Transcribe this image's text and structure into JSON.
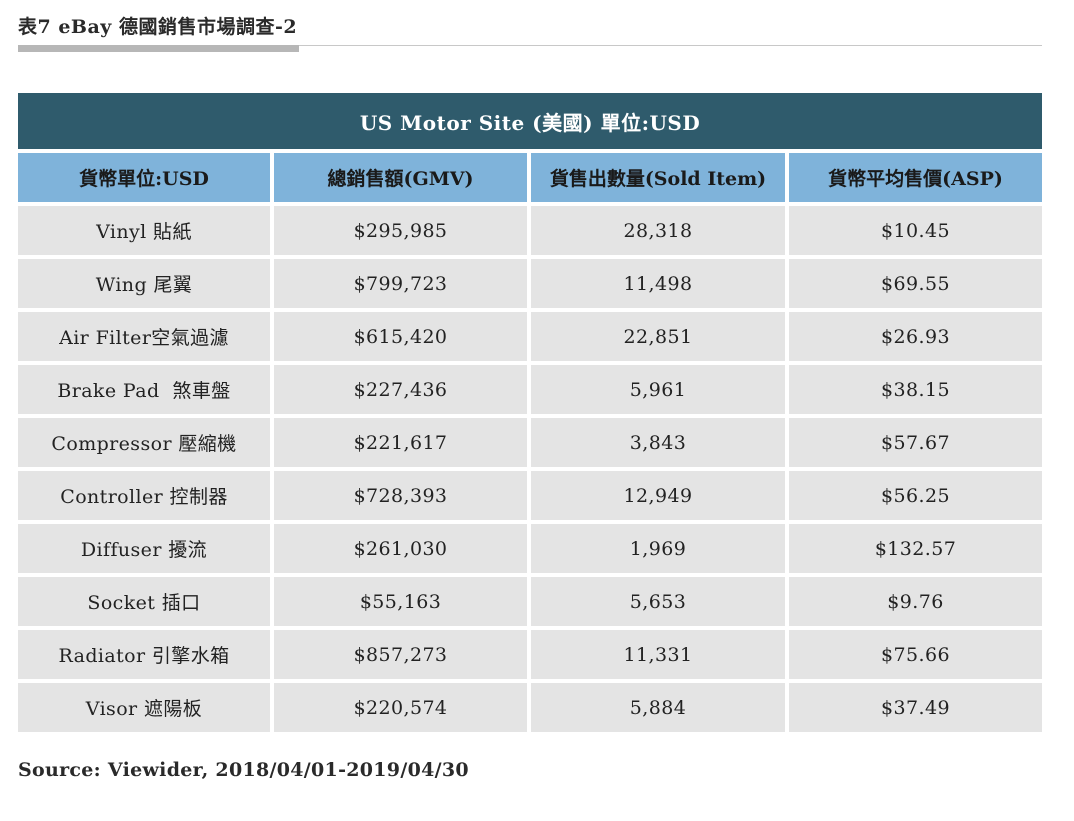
{
  "caption": "表7 eBay 德國銷售市場調查-2",
  "table": {
    "banner": "US Motor Site (美國) 單位:USD",
    "headers": [
      "貨幣單位:USD",
      "總銷售額(GMV)",
      "貨售出數量(Sold Item)",
      "貨幣平均售價(ASP)"
    ],
    "rows": [
      [
        "Vinyl 貼紙",
        "$295,985",
        "28,318",
        "$10.45"
      ],
      [
        "Wing 尾翼",
        "$799,723",
        "11,498",
        "$69.55"
      ],
      [
        "Air Filter空氣過濾",
        "$615,420",
        "22,851",
        "$26.93"
      ],
      [
        "Brake Pad  煞車盤",
        "$227,436",
        "5,961",
        "$38.15"
      ],
      [
        "Compressor 壓縮機",
        "$221,617",
        "3,843",
        "$57.67"
      ],
      [
        "Controller 控制器",
        "$728,393",
        "12,949",
        "$56.25"
      ],
      [
        "Diffuser 擾流",
        "$261,030",
        "1,969",
        "$132.57"
      ],
      [
        "Socket 插口",
        "$55,163",
        "5,653",
        "$9.76"
      ],
      [
        "Radiator 引擎水箱",
        "$857,273",
        "11,331",
        "$75.66"
      ],
      [
        "Visor 遮陽板",
        "$220,574",
        "5,884",
        "$37.49"
      ]
    ]
  },
  "source": "Source: Viewider, 2018/04/01-2019/04/30",
  "colors": {
    "banner_bg": "#2f5b6c",
    "header_bg": "#7fb3da",
    "cell_bg": "#e4e4e4"
  }
}
